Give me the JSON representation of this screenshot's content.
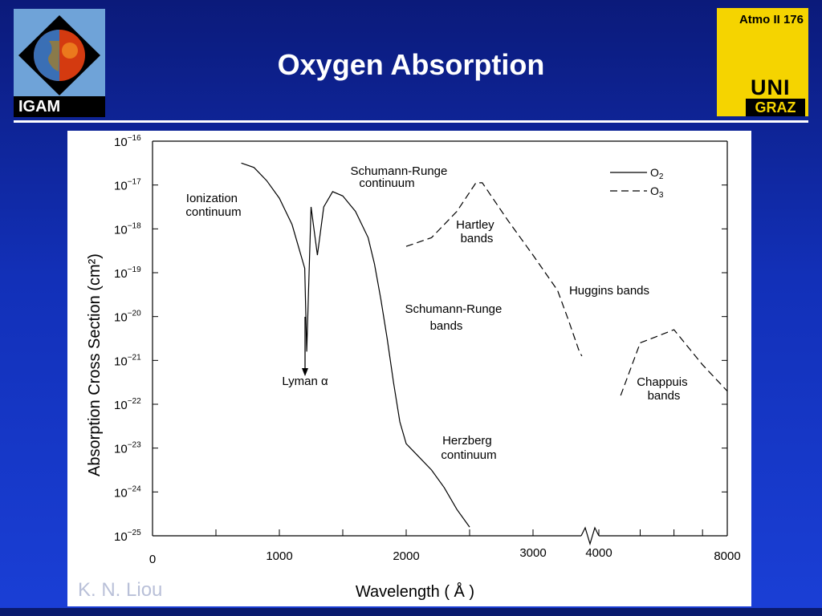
{
  "slide": {
    "title": "Oxygen Absorption",
    "tag": "Atmo II 176",
    "left_logo_text": "IGAM",
    "right_logo_uni": "UNI",
    "right_logo_graz": "GRAZ",
    "credit": "K. N. Liou",
    "colors": {
      "background": "#1230b8",
      "logo_yellow": "#f5d400",
      "title": "#ffffff"
    }
  },
  "chart_data": {
    "type": "line",
    "xlabel": "Wavelength ( Å )",
    "ylabel": "Absorption Cross Section (cm²)",
    "ylim_log10": [
      -25,
      -16
    ],
    "x_ticks": [
      "0",
      "1000",
      "2000",
      "3000",
      "4000",
      "8000"
    ],
    "x_segments": [
      "linear 0–3000 Å",
      "axis break",
      "log 4000–8000 Å"
    ],
    "y_ticks": [
      -16,
      -17,
      -18,
      -19,
      -20,
      -21,
      -22,
      -23,
      -24,
      -25
    ],
    "y_tick_base": "10",
    "legend": {
      "placement": "top-right",
      "entries": [
        {
          "name": "O2",
          "base": "O",
          "sub": "2",
          "style": "solid"
        },
        {
          "name": "O3",
          "base": "O",
          "sub": "3",
          "style": "dashed"
        }
      ]
    },
    "series": [
      {
        "name": "O2",
        "style": "solid",
        "points": [
          [
            700,
            -16.5
          ],
          [
            800,
            -16.6
          ],
          [
            900,
            -16.9
          ],
          [
            1000,
            -17.3
          ],
          [
            1100,
            -17.9
          ],
          [
            1200,
            -18.9
          ],
          [
            1216,
            -20.8
          ],
          [
            1250,
            -17.5
          ],
          [
            1300,
            -18.6
          ],
          [
            1350,
            -17.5
          ],
          [
            1420,
            -17.15
          ],
          [
            1500,
            -17.25
          ],
          [
            1600,
            -17.6
          ],
          [
            1700,
            -18.2
          ],
          [
            1750,
            -18.8
          ],
          [
            1800,
            -19.6
          ],
          [
            1850,
            -20.5
          ],
          [
            1900,
            -21.5
          ],
          [
            1950,
            -22.4
          ],
          [
            2000,
            -22.9
          ],
          [
            2100,
            -23.2
          ],
          [
            2200,
            -23.5
          ],
          [
            2300,
            -23.9
          ],
          [
            2400,
            -24.4
          ],
          [
            2500,
            -24.8
          ]
        ]
      },
      {
        "name": "O3",
        "style": "dashed",
        "points": [
          [
            2000,
            -18.4
          ],
          [
            2200,
            -18.2
          ],
          [
            2400,
            -17.6
          ],
          [
            2550,
            -16.95
          ],
          [
            2600,
            -16.95
          ],
          [
            2800,
            -17.8
          ],
          [
            3000,
            -18.6
          ],
          [
            3200,
            -19.4
          ],
          [
            3400,
            -20.1
          ],
          [
            3600,
            -20.8
          ],
          [
            3650,
            -20.9
          ]
        ]
      },
      {
        "name": "O3",
        "style": "dashed",
        "points": [
          [
            4500,
            -21.8
          ],
          [
            5000,
            -20.6
          ],
          [
            6000,
            -20.3
          ],
          [
            7000,
            -21.1
          ],
          [
            8000,
            -21.7
          ]
        ]
      }
    ],
    "annotations": [
      {
        "lines": [
          "Ionization",
          "continuum"
        ]
      },
      {
        "lines": [
          "Schumann-Runge",
          "continuum"
        ]
      },
      {
        "lines": [
          "Hartley",
          "bands"
        ]
      },
      {
        "lines": [
          "Huggins bands"
        ]
      },
      {
        "lines": [
          "Schumann-Runge",
          "bands"
        ]
      },
      {
        "lines": [
          "Lyman α"
        ]
      },
      {
        "lines": [
          "Chappuis",
          "bands"
        ]
      },
      {
        "lines": [
          "Herzberg",
          "continuum"
        ]
      }
    ]
  }
}
